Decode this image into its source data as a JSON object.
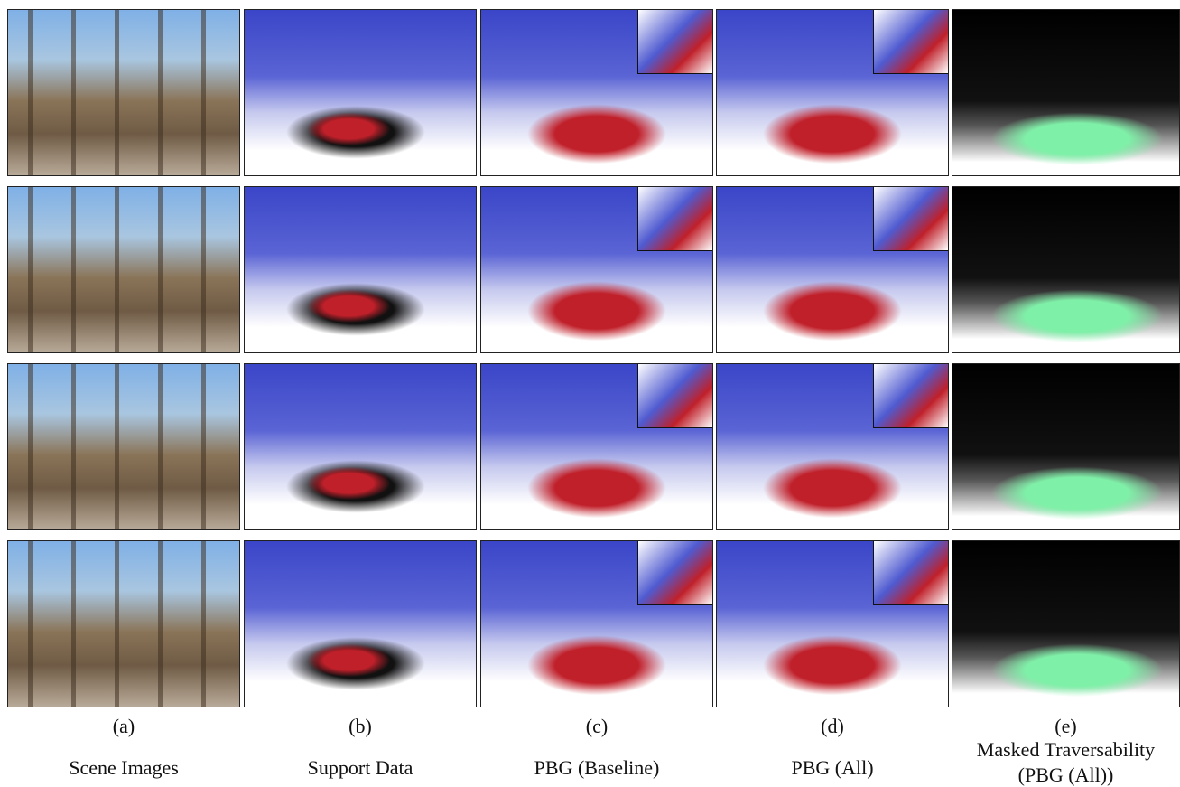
{
  "figure": {
    "columns": [
      {
        "letter": "(a)",
        "label": [
          "Scene Images"
        ]
      },
      {
        "letter": "(b)",
        "label": [
          "Support Data"
        ]
      },
      {
        "letter": "(c)",
        "label": [
          "PBG (Baseline)"
        ]
      },
      {
        "letter": "(d)",
        "label": [
          "PBG (All)"
        ]
      },
      {
        "letter": "(e)",
        "label": [
          "Masked Traversability",
          "(PBG (All))"
        ]
      }
    ]
  }
}
